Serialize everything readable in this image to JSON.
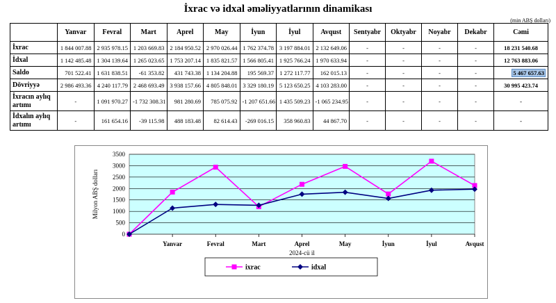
{
  "title": "İxrac və idxal əməliyyatlarının dinamikası",
  "unit": "(min ABŞ dolları)",
  "table": {
    "headers": [
      "",
      "Yanvar",
      "Fevral",
      "Mart",
      "Aprel",
      "May",
      "İyun",
      "İyul",
      "Avqust",
      "Sentyabr",
      "Oktyabr",
      "Noyabr",
      "Dekabr",
      "Cəmi"
    ],
    "rows": [
      {
        "label": "İxrac",
        "values": [
          "1 844 007.88",
          "2 935 978.15",
          "1 203 669.83",
          "2 184 950.52",
          "2 970 026.44",
          "1 762 374.78",
          "3 197 884.01",
          "2 132 649.06",
          "-",
          "-",
          "-",
          "-"
        ],
        "total": "18 231 540.68"
      },
      {
        "label": "İdxal",
        "values": [
          "1 142 485.48",
          "1 304 139.64",
          "1 265 023.65",
          "1 753 207.14",
          "1 835 821.57",
          "1 566 805.41",
          "1 925 766.24",
          "1 970 633.94",
          "-",
          "-",
          "-",
          "-"
        ],
        "total": "12 763 883.06"
      },
      {
        "label": "Saldo",
        "values": [
          "701 522.41",
          "1 631 838.51",
          "-61 353.82",
          "431 743.38",
          "1 134 204.88",
          "195 569.37",
          "1 272 117.77",
          "162 015.13",
          "-",
          "-",
          "-",
          "-"
        ],
        "total": "5 467 657.63"
      },
      {
        "label": "Dövriyyə",
        "values": [
          "2 986 493.36",
          "4 240 117.79",
          "2 468 693.49",
          "3 938 157.66",
          "4 805 848.01",
          "3 329 180.19",
          "5 123 650.25",
          "4 103 283.00",
          "-",
          "-",
          "-",
          "-"
        ],
        "total": "30 995 423.74"
      },
      {
        "label": "İxracın aylıq artımı",
        "values": [
          "-",
          "1 091 970.27",
          "-1 732 308.31",
          "981 280.69",
          "785 075.92",
          "-1 207 651.66",
          "1 435 509.23",
          "-1 065 234.95",
          "-",
          "-",
          "-",
          "-"
        ],
        "total": "-"
      },
      {
        "label": "İdxalın aylıq artımı",
        "values": [
          "-",
          "161 654.16",
          "-39 115.98",
          "488 183.48",
          "82 614.43",
          "-269 016.15",
          "358 960.83",
          "44 867.70",
          "-",
          "-",
          "-",
          "-"
        ],
        "total": "-"
      }
    ]
  },
  "chart_data": {
    "type": "line",
    "categories": [
      "",
      "Yanvar",
      "Fevral",
      "Mart",
      "Aprel",
      "May",
      "İyun",
      "İyul",
      "Avqust"
    ],
    "xlabel": "2024-cü il",
    "ylabel": "Milyon ABŞ dolları",
    "ylim": [
      0,
      3500
    ],
    "yticks": [
      "0",
      "500",
      "1000",
      "1500",
      "2000",
      "2500",
      "3000",
      "3500"
    ],
    "grid": true,
    "legend_placement": "bottom",
    "series": [
      {
        "name": "ixrac",
        "color": "#ff00ff",
        "marker": "square",
        "values": [
          0,
          1844,
          2936,
          1204,
          2185,
          2970,
          1762,
          3198,
          2133
        ]
      },
      {
        "name": "idxal",
        "color": "#000080",
        "marker": "diamond",
        "values": [
          0,
          1142,
          1304,
          1265,
          1753,
          1836,
          1567,
          1926,
          1971
        ]
      }
    ],
    "plot_bg": "#ccffff"
  }
}
